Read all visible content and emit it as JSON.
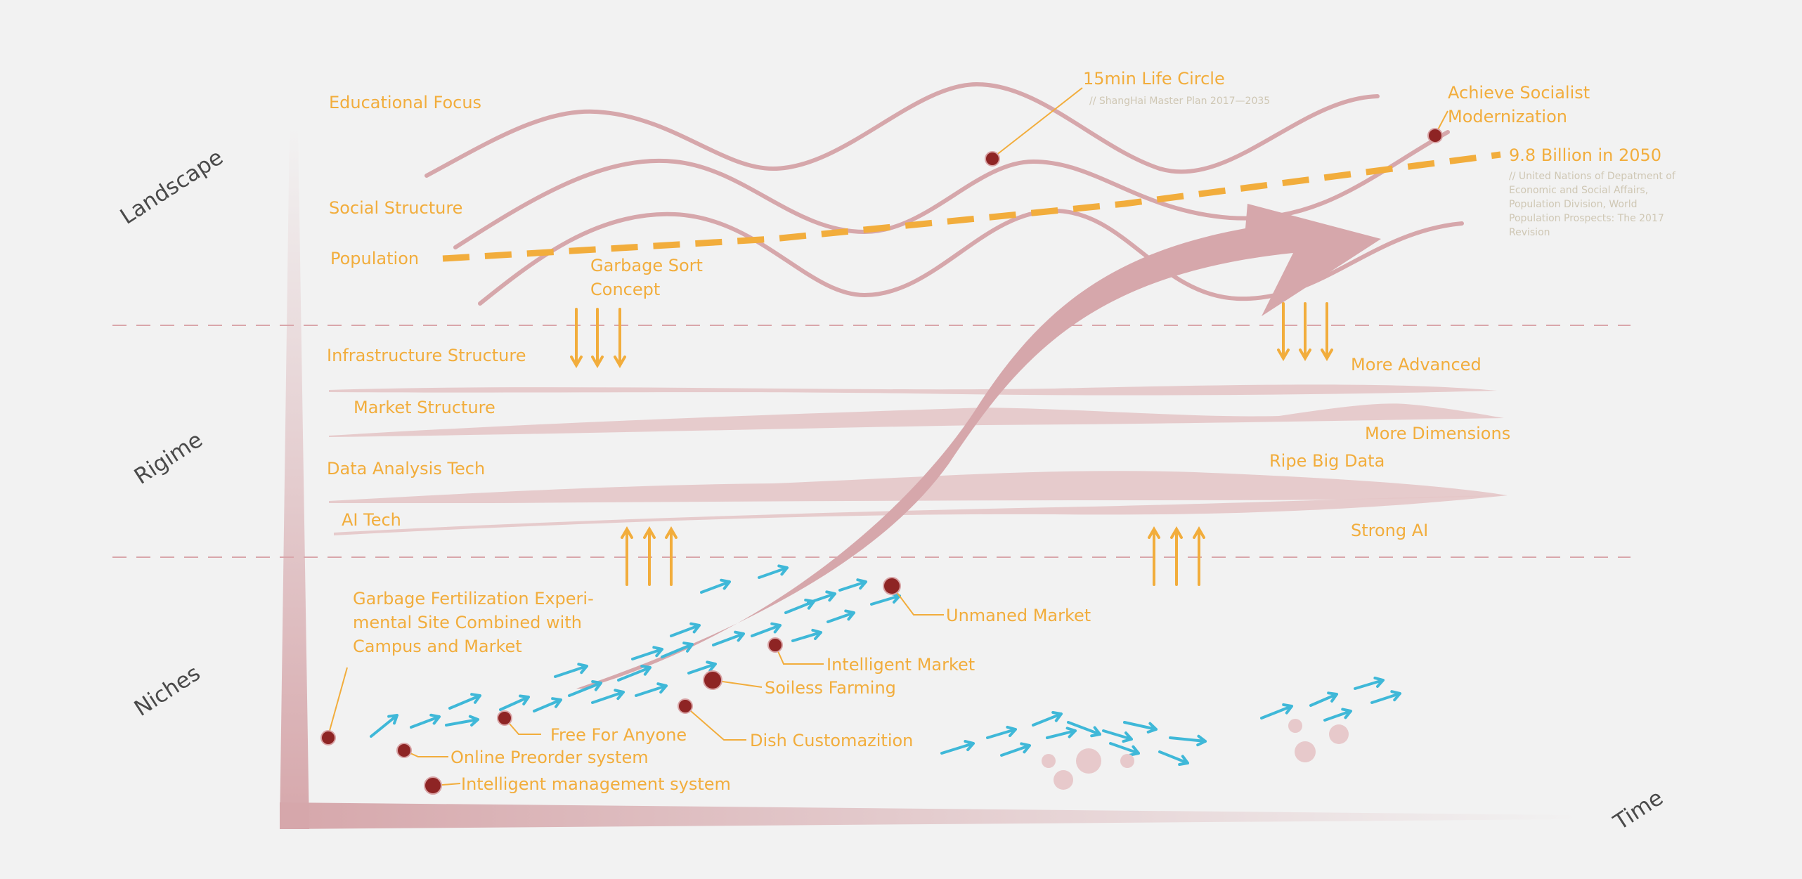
{
  "axes": {
    "time": "Time",
    "levels": [
      "Landscape",
      "Rigime",
      "Niches"
    ]
  },
  "landscape": {
    "educational_focus": "Educational Focus",
    "social_structure": "Social Structure",
    "population": "Population",
    "life_circle": {
      "title": "15min Life Circle",
      "source": "// ShangHai Master Plan 2017—2035"
    },
    "modernization": [
      "Achieve Socialist",
      "Modernization"
    ],
    "population_2050": {
      "title": "9.8 Billion in 2050",
      "source": [
        "// United Nations of Depatment of",
        "Economic and Social Affairs,",
        "Population Division, World",
        "Population Prospects: The 2017",
        "Revision"
      ]
    },
    "garbage_sort": [
      "Garbage Sort",
      "Concept"
    ]
  },
  "regime": {
    "infrastructure": "Infrastructure Structure",
    "market": "Market Structure",
    "data_analysis": "Data Analysis Tech",
    "ai_tech": "AI Tech",
    "more_advanced": "More Advanced",
    "more_dimensions": "More Dimensions",
    "ripe_big_data": "Ripe Big Data",
    "strong_ai": "Strong AI"
  },
  "niches": {
    "garbage_site": [
      "Garbage Fertilization Experi-",
      "mental Site Combined with",
      "Campus and Market"
    ],
    "unmaned_market": "Unmaned  Market",
    "intelligent_market": "Intelligent Market",
    "soiless_farming": "Soiless Farming",
    "free_for_anyone": "Free For Anyone",
    "dish_customization": "Dish Customazition",
    "online_preorder": "Online Preorder system",
    "intelligent_management": "Intelligent management system"
  },
  "colors": {
    "label": "#f2ad3c",
    "wave": "#d6a7ab",
    "dot": "#8e2424",
    "arrow_blue": "#3fb8d8",
    "axis_text": "#4a4a4a",
    "background": "#f2f2f2"
  }
}
